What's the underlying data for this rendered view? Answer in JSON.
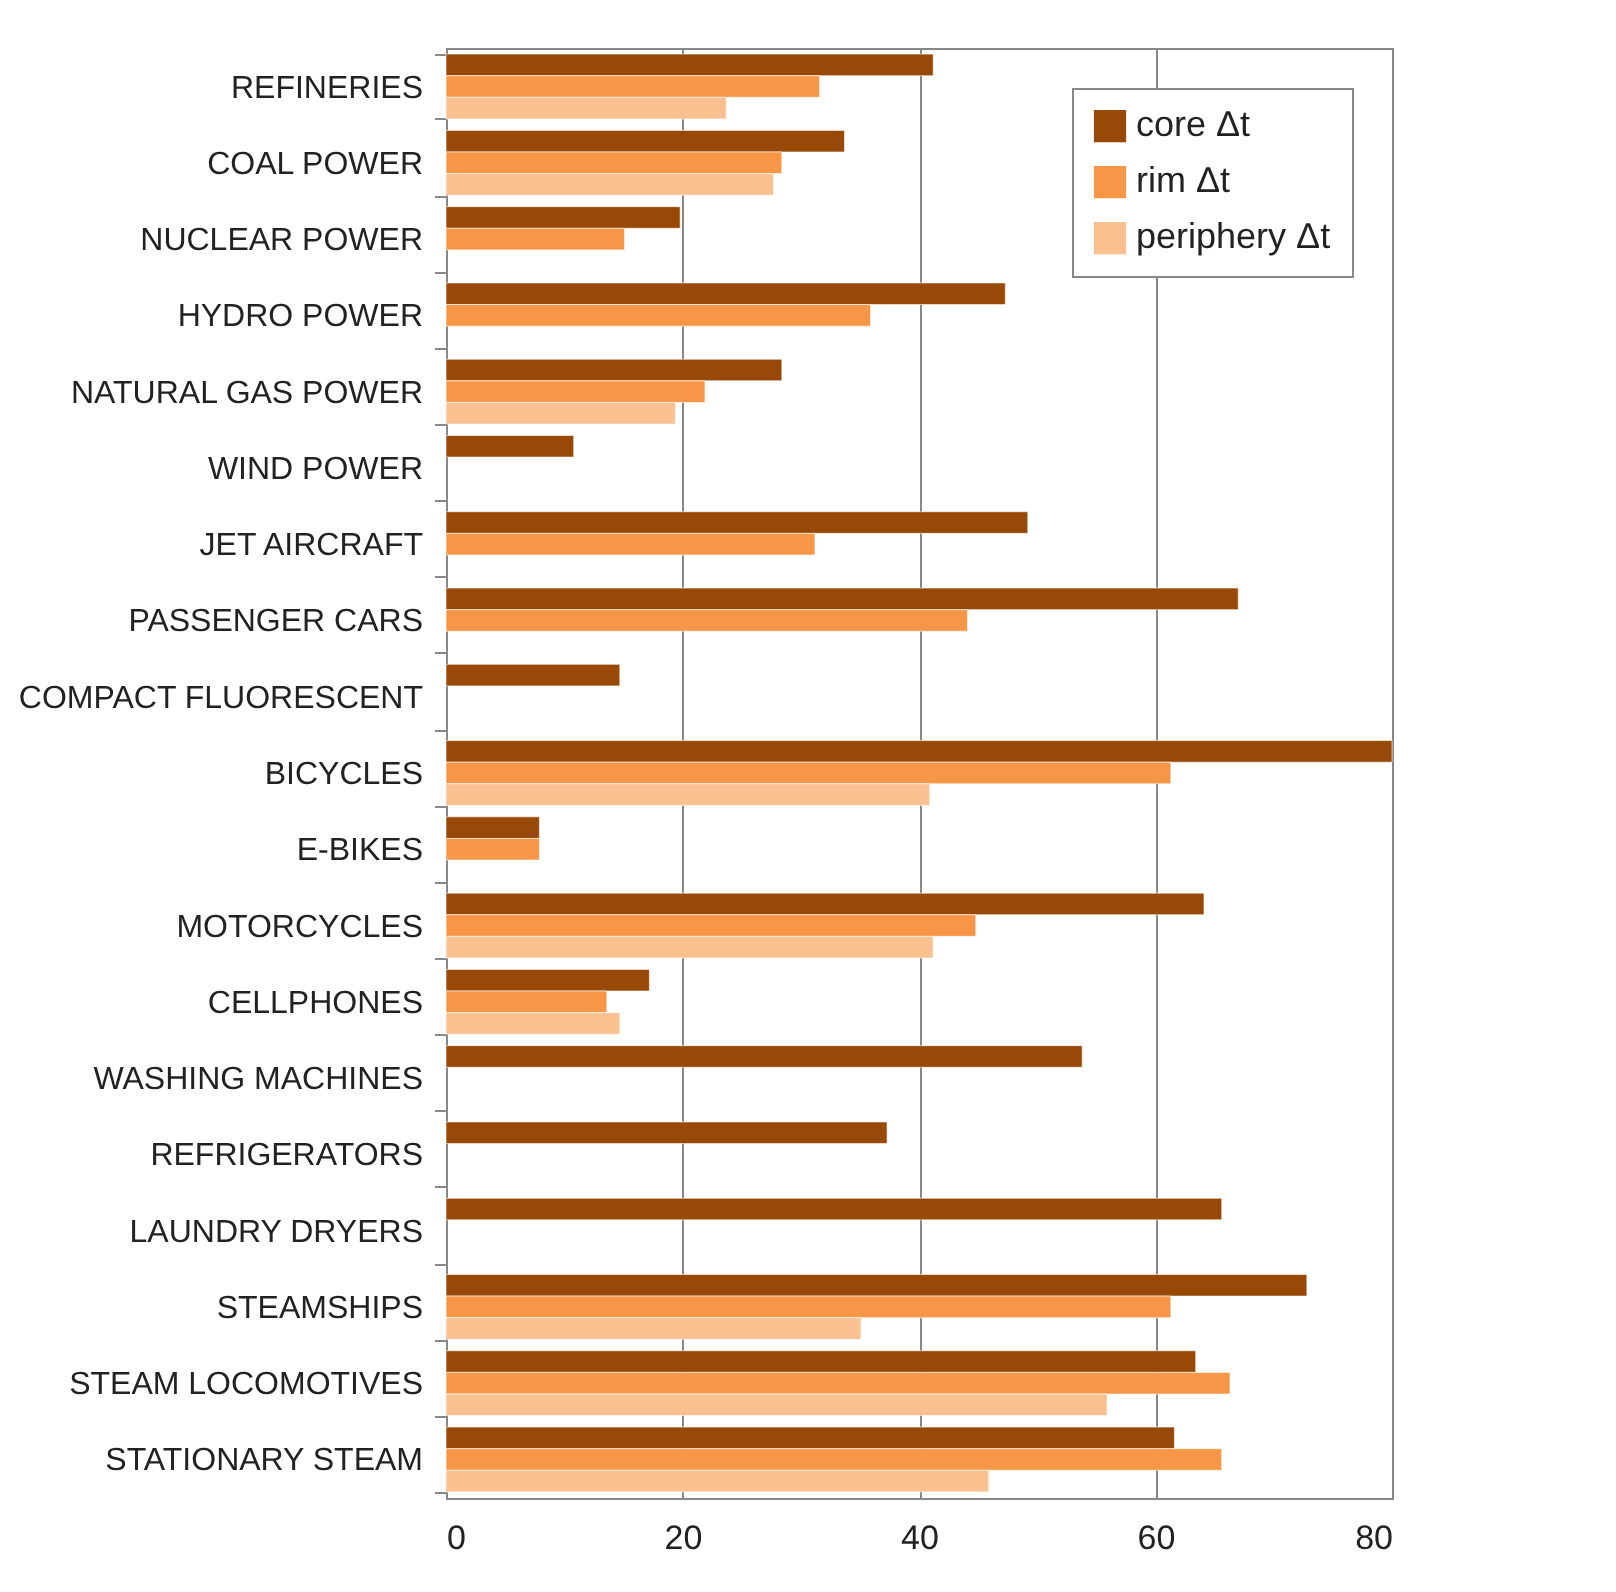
{
  "chart_data": {
    "type": "bar",
    "orientation": "horizontal",
    "categories": [
      "REFINERIES",
      "COAL POWER",
      "NUCLEAR POWER",
      "HYDRO POWER",
      "NATURAL GAS POWER",
      "WIND POWER",
      "JET AIRCRAFT",
      "PASSENGER CARS",
      "COMPACT FLUORESCENT",
      "BICYCLES",
      "E-BIKES",
      "MOTORCYCLES",
      "CELLPHONES",
      "WASHING MACHINES",
      "REFRIGERATORS",
      "LAUNDRY DRYERS",
      "STEAMSHIPS",
      "STEAM LOCOMOTIVES",
      "STATIONARY STEAM"
    ],
    "series": [
      {
        "name": "core Δt",
        "color": "#984807",
        "values": [
          41.2,
          33.7,
          19.8,
          47.3,
          28.4,
          10.8,
          49.2,
          67.0,
          14.7,
          80,
          7.9,
          64.1,
          17.2,
          53.8,
          37.3,
          65.6,
          72.8,
          63.4,
          61.6
        ]
      },
      {
        "name": "rim Δt",
        "color": "#f79646",
        "values": [
          31.6,
          28.4,
          15.1,
          35.9,
          21.9,
          null,
          31.2,
          44.1,
          null,
          61.3,
          7.9,
          44.8,
          13.6,
          null,
          null,
          null,
          61.3,
          66.3,
          65.6
        ]
      },
      {
        "name": "periphery Δt",
        "color": "#fac090",
        "values": [
          23.7,
          27.7,
          null,
          null,
          19.4,
          null,
          null,
          null,
          null,
          40.9,
          null,
          41.2,
          14.7,
          null,
          null,
          null,
          35.1,
          55.9,
          45.9
        ]
      }
    ],
    "xlim": [
      0,
      80
    ],
    "xticks": [
      0,
      20,
      40,
      60,
      80
    ],
    "grid": "x",
    "legend": "top right"
  }
}
